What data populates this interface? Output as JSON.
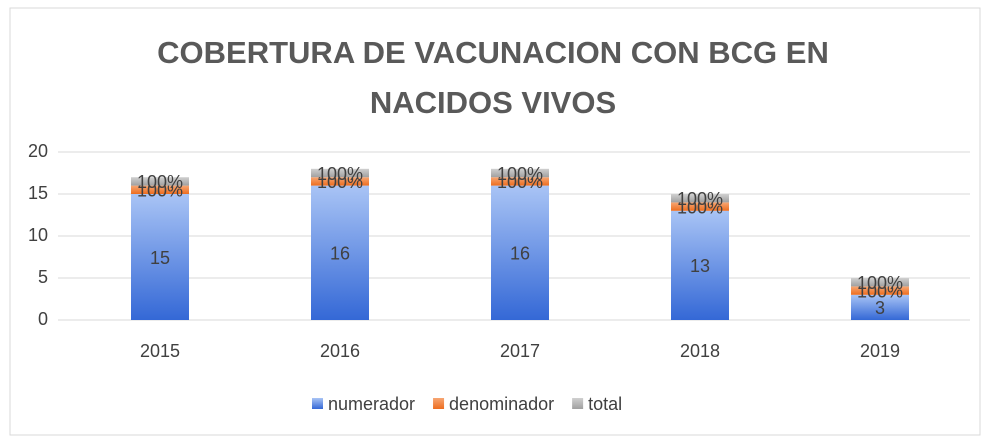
{
  "chart_data": {
    "type": "stacked_bar",
    "title": "COBERTURA DE VACUNACION CON BCG EN NACIDOS VIVOS",
    "categories": [
      "2015",
      "2016",
      "2017",
      "2018",
      "2019"
    ],
    "series": [
      {
        "name": "numerador",
        "color": "#4472c4",
        "values": [
          15,
          16,
          16,
          13,
          3
        ]
      },
      {
        "name": "denominador",
        "color": "#ed7d31",
        "values": [
          1,
          1,
          1,
          1,
          1
        ],
        "value_labels": [
          "100%",
          "100%",
          "100%",
          "100%",
          "100%"
        ]
      },
      {
        "name": "total",
        "color": "#a5a5a5",
        "values": [
          1,
          1,
          1,
          1,
          1
        ],
        "value_labels": [
          "100%",
          "100%",
          "100%",
          "100%",
          "100%"
        ]
      }
    ],
    "ylim": [
      0,
      20
    ],
    "yticks": [
      0,
      5,
      10,
      15,
      20
    ],
    "grid": true,
    "legend": "bottom"
  }
}
